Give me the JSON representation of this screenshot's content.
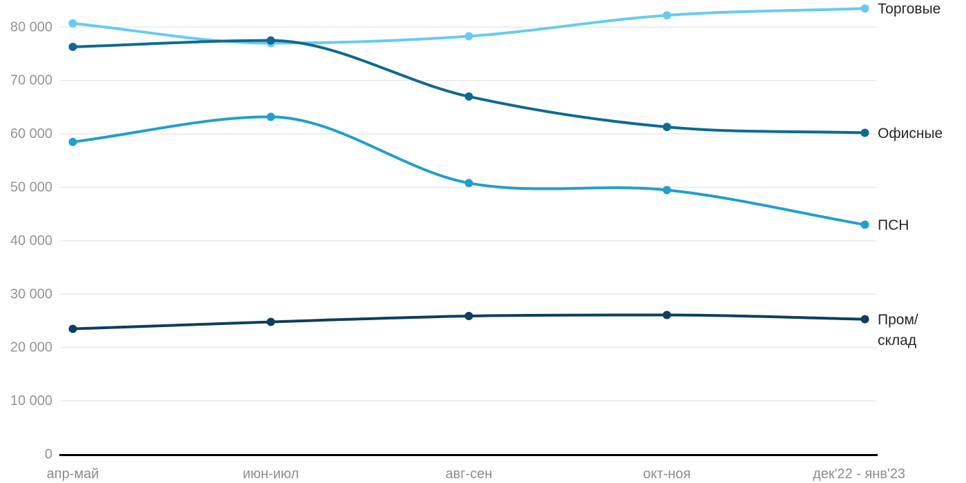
{
  "chart_data": {
    "type": "line",
    "title": "",
    "xlabel": "",
    "ylabel": "",
    "categories": [
      "апр-май",
      "июн-июл",
      "авг-сен",
      "окт-ноя",
      "дек'22 - янв'23"
    ],
    "series": [
      {
        "id": "torgovye",
        "name": "Торговые",
        "color": "#66cbf3",
        "values": [
          80700,
          77000,
          78300,
          82200,
          83500
        ]
      },
      {
        "id": "ofisnye",
        "name": "Офисные",
        "color": "#0e6a93",
        "values": [
          76300,
          77500,
          67000,
          61300,
          60200
        ]
      },
      {
        "id": "psn",
        "name": "ПСН",
        "color": "#219fce",
        "values": [
          58500,
          63200,
          50800,
          49500,
          43000
        ]
      },
      {
        "id": "prom-sklad",
        "name": "Пром/склад",
        "color": "#0d3f5e",
        "values": [
          23500,
          24800,
          25900,
          26100,
          25300
        ],
        "label_lines": [
          "Пром/",
          "склад"
        ]
      }
    ],
    "yticks": [
      0,
      10000,
      20000,
      30000,
      40000,
      50000,
      60000,
      70000,
      80000
    ],
    "ytick_labels": [
      "0",
      "10 000",
      "20 000",
      "30 000",
      "40 000",
      "50 000",
      "60 000",
      "70 000",
      "80 000"
    ],
    "ylim": [
      0,
      85000
    ],
    "grid": "horizontal",
    "legend_position": "right-of-line-end",
    "colors": {
      "grid_line": "#e8e8e8",
      "axis_line": "#000000",
      "y_tick_label": "#949494",
      "x_tick_label": "#8c8c8c",
      "legend_label": "#262626",
      "background": "#ffffff"
    }
  }
}
